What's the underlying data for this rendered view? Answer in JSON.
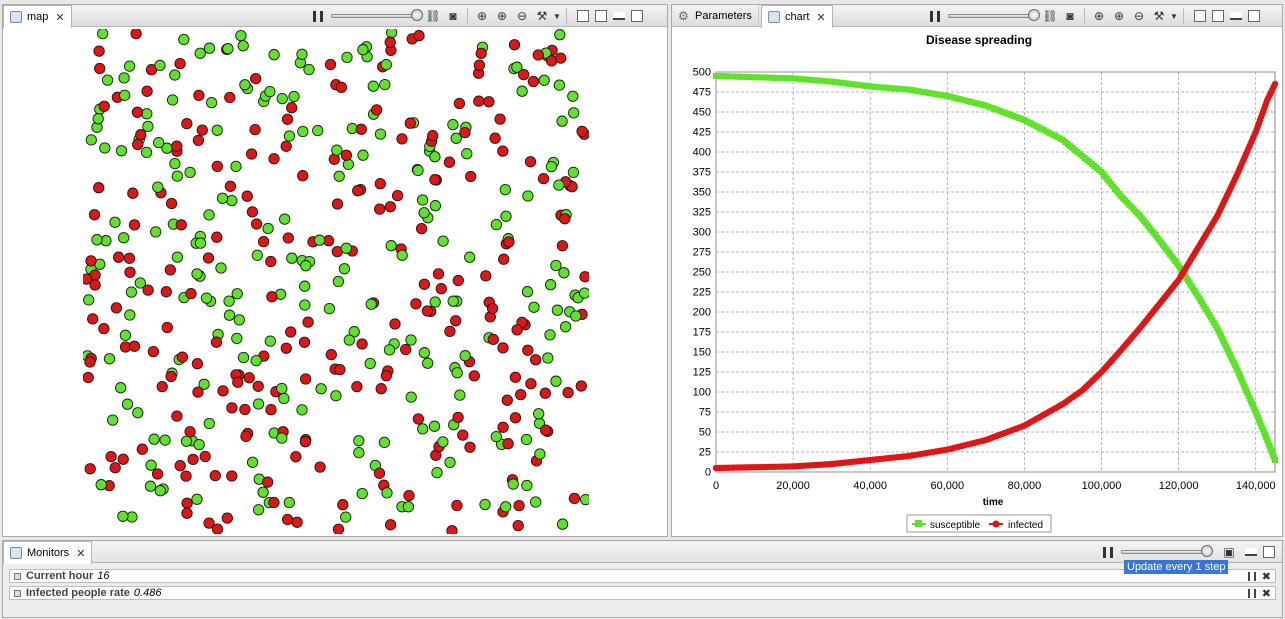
{
  "map_pane": {
    "tab_label": "map",
    "close_glyph": "✕"
  },
  "chart_pane": {
    "tabs": [
      {
        "label": "Parameters",
        "icon": "gear-icon"
      },
      {
        "label": "chart",
        "icon": "chart-icon"
      }
    ],
    "close_glyph": "✕"
  },
  "monitors_pane": {
    "tab_label": "Monitors",
    "rows": [
      {
        "label": "Current hour",
        "value": "16"
      },
      {
        "label": "Infected people rate",
        "value": "0.486"
      }
    ],
    "tooltip": "Update every 1 step"
  },
  "map_data": {
    "susceptible_color": "#5fe22a",
    "infected_color": "#e01515",
    "susceptible_count": 250,
    "infected_count": 250
  },
  "chart_data": {
    "type": "line",
    "title": "Disease spreading",
    "xlabel": "time",
    "ylabel": "",
    "xlim": [
      0,
      145000
    ],
    "ylim": [
      0,
      500
    ],
    "x_ticks": [
      "0",
      "20,000",
      "40,000",
      "60,000",
      "80,000",
      "100,000",
      "120,000",
      "140,000"
    ],
    "y_ticks": [
      "0",
      "25",
      "50",
      "75",
      "100",
      "125",
      "150",
      "175",
      "200",
      "225",
      "250",
      "275",
      "300",
      "325",
      "350",
      "375",
      "400",
      "425",
      "450",
      "475",
      "500"
    ],
    "grid": true,
    "legend_position": "bottom",
    "series": [
      {
        "name": "susceptible",
        "color": "#5fe22a",
        "marker": "square",
        "x": [
          0,
          20000,
          30000,
          40000,
          50000,
          60000,
          70000,
          80000,
          90000,
          95000,
          100000,
          105000,
          110000,
          115000,
          120000,
          125000,
          130000,
          135000,
          140000,
          143000,
          145000
        ],
        "y": [
          495,
          492,
          488,
          482,
          478,
          470,
          458,
          440,
          415,
          395,
          375,
          345,
          320,
          290,
          258,
          220,
          180,
          130,
          75,
          40,
          15
        ]
      },
      {
        "name": "infected",
        "color": "#e01515",
        "marker": "circle",
        "x": [
          0,
          20000,
          30000,
          40000,
          50000,
          60000,
          70000,
          80000,
          90000,
          95000,
          100000,
          105000,
          110000,
          115000,
          120000,
          125000,
          130000,
          135000,
          140000,
          143000,
          145000
        ],
        "y": [
          5,
          7,
          10,
          15,
          20,
          28,
          40,
          58,
          85,
          102,
          125,
          152,
          180,
          210,
          240,
          280,
          320,
          370,
          425,
          465,
          485
        ]
      }
    ]
  }
}
